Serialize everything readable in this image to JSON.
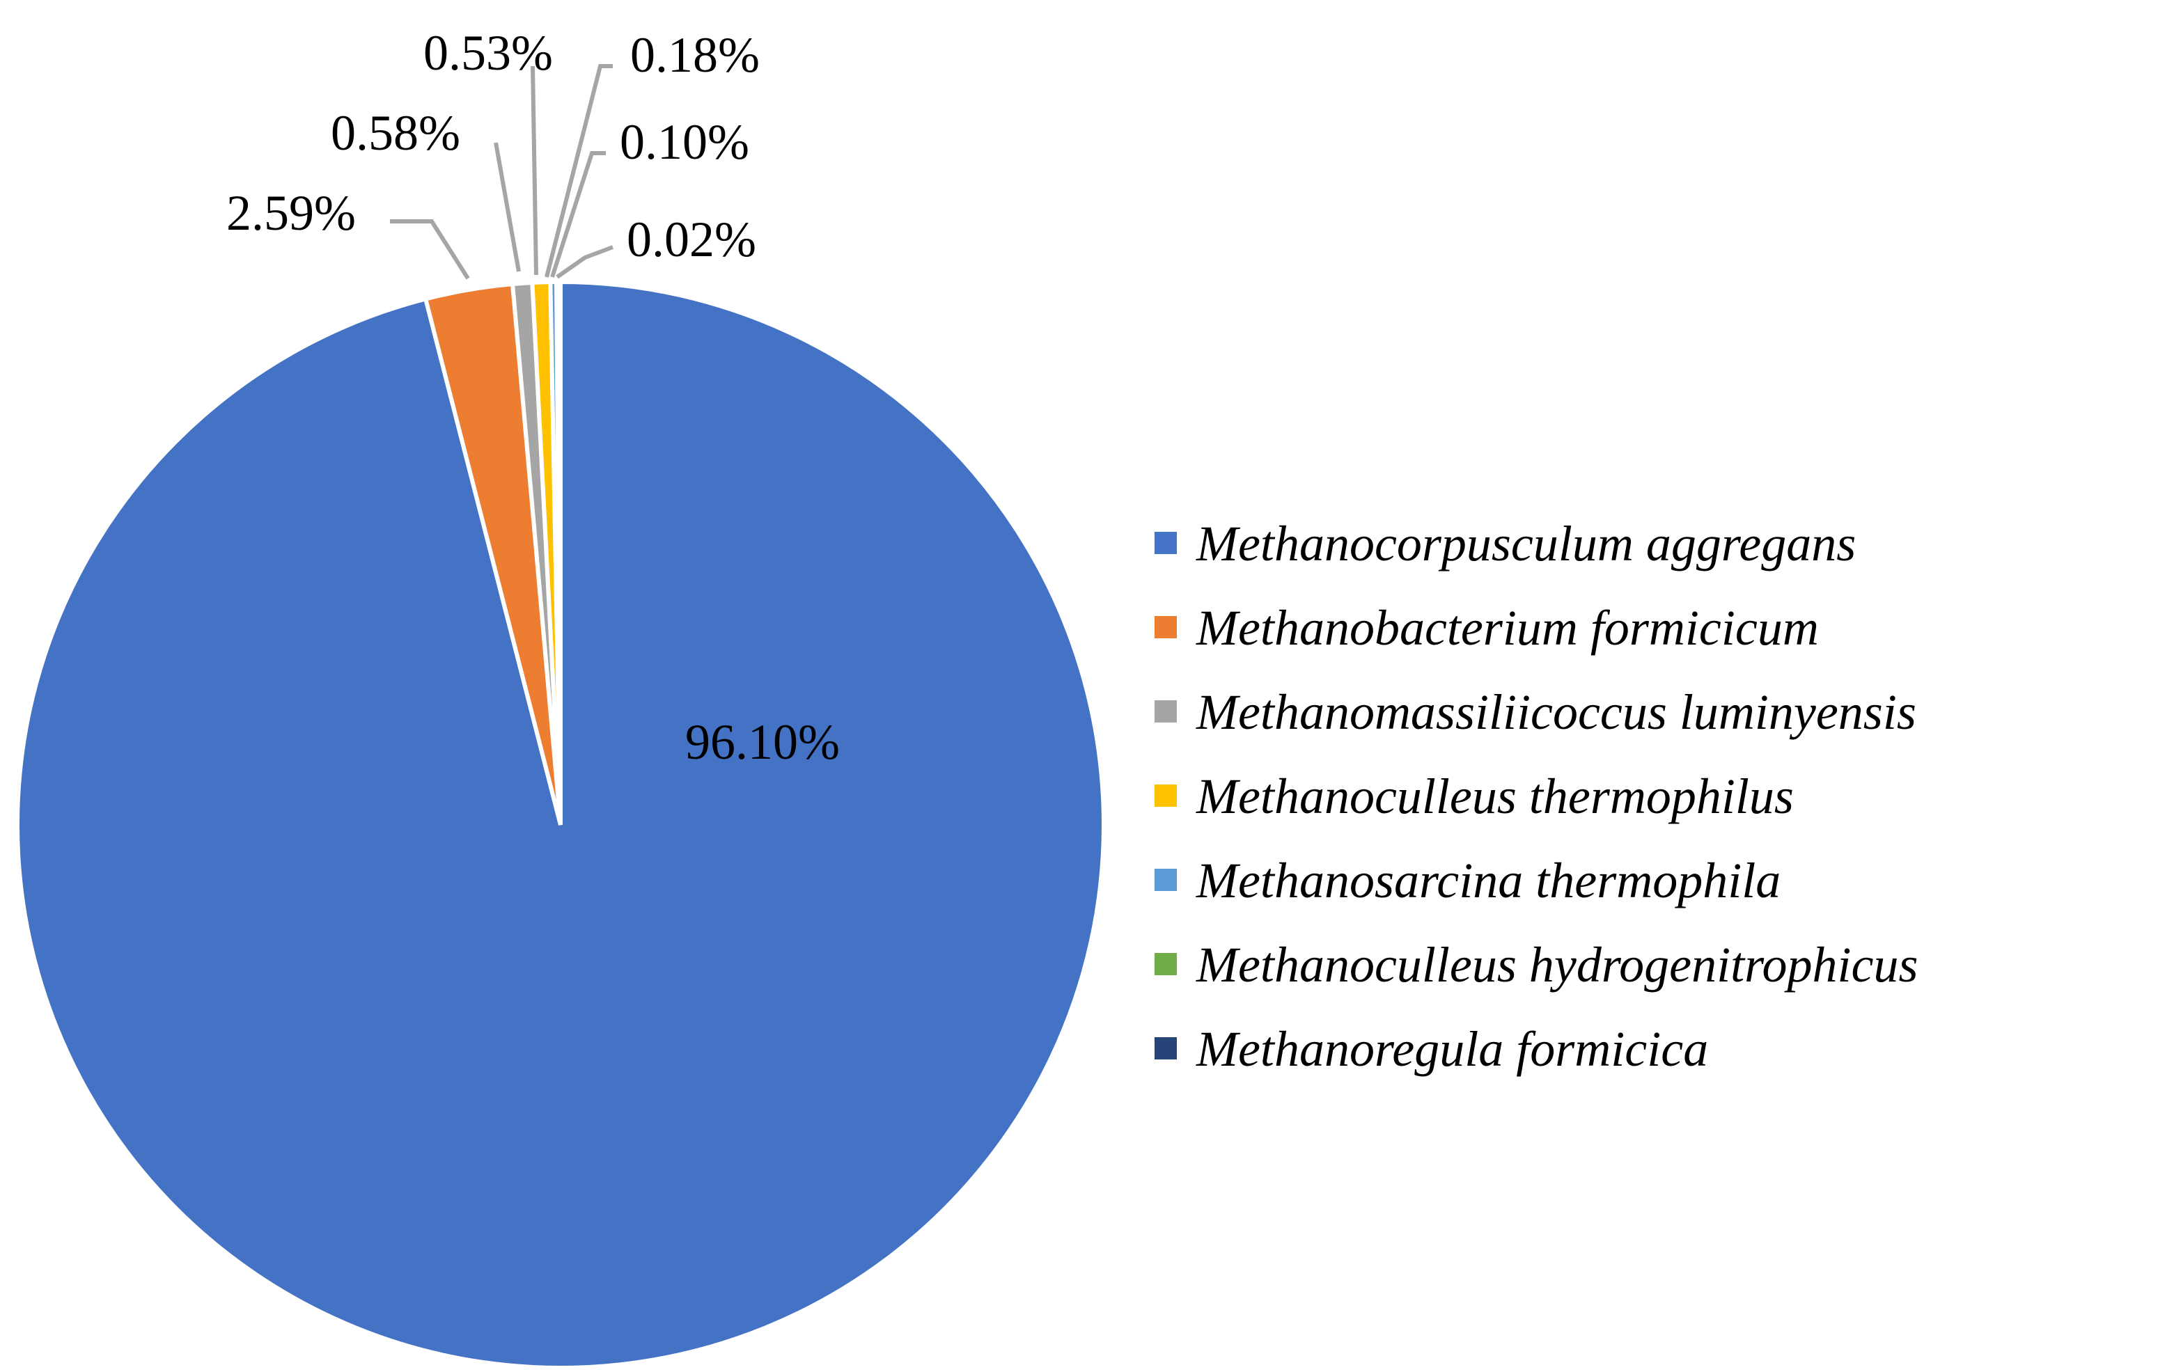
{
  "chart_data": {
    "type": "pie",
    "title": "",
    "legend_position": "right",
    "series": [
      {
        "name": "Methanocorpusculum aggregans",
        "value": 96.1,
        "label": "96.10%",
        "color": "#4472c4"
      },
      {
        "name": "Methanobacterium formicicum",
        "value": 2.59,
        "label": "2.59%",
        "color": "#ed7d31"
      },
      {
        "name": "Methanomassiliicoccus luminyensis",
        "value": 0.58,
        "label": "0.58%",
        "color": "#a5a5a5"
      },
      {
        "name": "Methanoculleus thermophilus",
        "value": 0.53,
        "label": "0.53%",
        "color": "#ffc000"
      },
      {
        "name": "Methanosarcina thermophila",
        "value": 0.18,
        "label": "0.18%",
        "color": "#5b9bd5"
      },
      {
        "name": "Methanoculleus hydrogenitrophicus",
        "value": 0.1,
        "label": "0.10%",
        "color": "#70ad47"
      },
      {
        "name": "Methanoregula formicica",
        "value": 0.02,
        "label": "0.02%",
        "color": "#264478"
      }
    ]
  }
}
